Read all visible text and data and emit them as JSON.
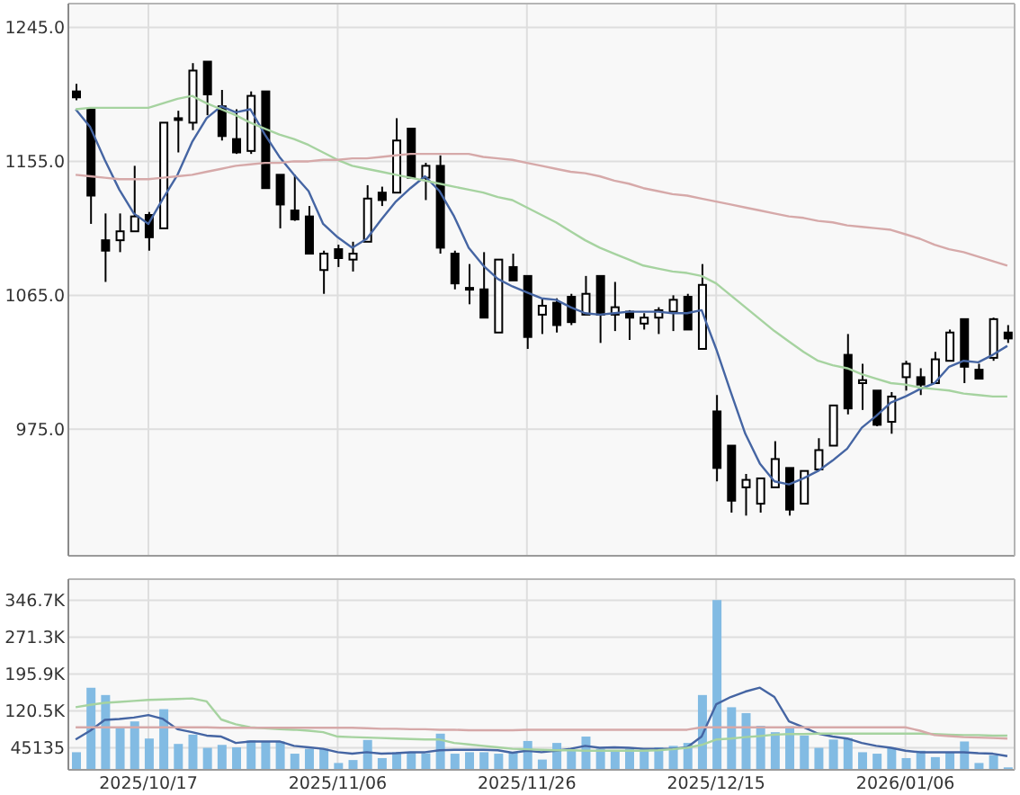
{
  "chart_data": [
    {
      "type": "candlestick",
      "categories": [
        null,
        null,
        null,
        null,
        null,
        "2025/10/17",
        null,
        null,
        null,
        null,
        null,
        null,
        null,
        null,
        null,
        null,
        null,
        null,
        "2025/11/06",
        null,
        null,
        null,
        null,
        null,
        null,
        null,
        null,
        null,
        null,
        null,
        null,
        "2025/11/26",
        null,
        null,
        null,
        null,
        null,
        null,
        null,
        null,
        null,
        null,
        null,
        null,
        "2025/12/15",
        null,
        null,
        null,
        null,
        null,
        null,
        null,
        null,
        null,
        null,
        null,
        null,
        "2026/01/06",
        null,
        null,
        null,
        null,
        null,
        null,
        null
      ],
      "ohlc": [
        [
          1202,
          1207,
          1196,
          1198
        ],
        [
          1190,
          1190,
          1113,
          1132
        ],
        [
          1102,
          1120,
          1074,
          1095
        ],
        [
          1102,
          1120,
          1094,
          1108
        ],
        [
          1108,
          1152,
          1108,
          1118
        ],
        [
          1119,
          1121,
          1095,
          1104
        ],
        [
          1110,
          1181,
          1110,
          1181
        ],
        [
          1184,
          1189,
          1161,
          1183
        ],
        [
          1181,
          1221,
          1176,
          1216
        ],
        [
          1222,
          1222,
          1186,
          1200
        ],
        [
          1192,
          1203,
          1169,
          1172
        ],
        [
          1170,
          1190,
          1160,
          1161
        ],
        [
          1162,
          1202,
          1160,
          1199
        ],
        [
          1202,
          1202,
          1137,
          1137
        ],
        [
          1146,
          1146,
          1110,
          1126
        ],
        [
          1122,
          1146,
          1115,
          1116
        ],
        [
          1118,
          1125,
          1093,
          1093
        ],
        [
          1082,
          1095,
          1066,
          1093
        ],
        [
          1096,
          1099,
          1084,
          1090
        ],
        [
          1089,
          1101,
          1081,
          1093
        ],
        [
          1101,
          1139,
          1101,
          1130
        ],
        [
          1134,
          1138,
          1125,
          1129
        ],
        [
          1134,
          1184,
          1134,
          1169
        ],
        [
          1177,
          1177,
          1144,
          1144
        ],
        [
          1144,
          1154,
          1129,
          1152
        ],
        [
          1152,
          1159,
          1093,
          1097
        ],
        [
          1093,
          1095,
          1069,
          1073
        ],
        [
          1070,
          1086,
          1059,
          1069
        ],
        [
          1069,
          1094,
          1050,
          1050
        ],
        [
          1040,
          1089,
          1040,
          1089
        ],
        [
          1084,
          1093,
          1075,
          1075
        ],
        [
          1078,
          1078,
          1029,
          1037
        ],
        [
          1052,
          1063,
          1039,
          1058
        ],
        [
          1060,
          1063,
          1040,
          1045
        ],
        [
          1064,
          1066,
          1045,
          1047
        ],
        [
          1052,
          1078,
          1052,
          1066
        ],
        [
          1078,
          1078,
          1033,
          1052
        ],
        [
          1052,
          1074,
          1041,
          1057
        ],
        [
          1054,
          1055,
          1035,
          1050
        ],
        [
          1046,
          1053,
          1042,
          1050
        ],
        [
          1050,
          1057,
          1039,
          1055
        ],
        [
          1054,
          1065,
          1041,
          1062
        ],
        [
          1064,
          1066,
          1042,
          1042
        ],
        [
          1029,
          1086,
          1029,
          1072
        ],
        [
          987,
          998,
          940,
          949
        ],
        [
          964,
          964,
          919,
          927
        ],
        [
          936,
          945,
          917,
          941
        ],
        [
          925,
          942,
          919,
          942
        ],
        [
          936,
          967,
          936,
          955
        ],
        [
          949,
          949,
          917,
          921
        ],
        [
          925,
          947,
          925,
          947
        ],
        [
          948,
          969,
          948,
          961
        ],
        [
          964,
          991,
          964,
          991
        ],
        [
          1025,
          1039,
          985,
          989
        ],
        [
          1006,
          1019,
          988,
          1008
        ],
        [
          1001,
          1001,
          977,
          978
        ],
        [
          980,
          1000,
          972,
          997
        ],
        [
          1010,
          1021,
          1001,
          1019
        ],
        [
          1010,
          1016,
          998,
          1005
        ],
        [
          1006,
          1027,
          1006,
          1022
        ],
        [
          1021,
          1042,
          1021,
          1040
        ],
        [
          1049,
          1049,
          1006,
          1017
        ],
        [
          1015,
          1019,
          1009,
          1009
        ],
        [
          1023,
          1050,
          1021,
          1049
        ],
        [
          1040,
          1045,
          1033,
          1036
        ]
      ],
      "series": [
        {
          "type": "line",
          "color": "#4565a3",
          "values": [
            1190,
            1178,
            1156,
            1136,
            1120,
            1113,
            1130,
            1146,
            1168,
            1184,
            1192,
            1188,
            1190,
            1173,
            1158,
            1146,
            1135,
            1113,
            1104,
            1097,
            1103,
            1116,
            1128,
            1137,
            1145,
            1135,
            1118,
            1097,
            1085,
            1076,
            1071,
            1067,
            1063,
            1062,
            1057,
            1053,
            1052,
            1053,
            1054,
            1054,
            1054,
            1053,
            1053,
            1055,
            1029,
            1000,
            972,
            952,
            940,
            938,
            942,
            947,
            954,
            962,
            976,
            984,
            993,
            997,
            1002,
            1006,
            1017,
            1021,
            1020,
            1025,
            1031
          ]
        },
        {
          "type": "line",
          "color": "#a6d3a0",
          "values": [
            1190,
            1191,
            1191,
            1191,
            1191,
            1191,
            1194,
            1197,
            1199,
            1194,
            1190,
            1186,
            1181,
            1177,
            1173,
            1170,
            1166,
            1161,
            1156,
            1152,
            1150,
            1148,
            1146,
            1144,
            1142,
            1140,
            1138,
            1136,
            1134,
            1131,
            1129,
            1124,
            1119,
            1114,
            1108,
            1102,
            1097,
            1093,
            1089,
            1085,
            1083,
            1081,
            1080,
            1078,
            1073,
            1065,
            1057,
            1049,
            1041,
            1034,
            1027,
            1021,
            1018,
            1016,
            1012,
            1009,
            1006,
            1005,
            1003,
            1002,
            1001,
            999,
            998,
            997,
            997
          ]
        },
        {
          "type": "line",
          "color": "#d6a9a9",
          "values": [
            1146,
            1145,
            1144,
            1143,
            1143,
            1143,
            1144,
            1145,
            1146,
            1148,
            1150,
            1152,
            1153,
            1154,
            1154,
            1155,
            1155,
            1156,
            1156,
            1157,
            1157,
            1158,
            1159,
            1160,
            1160,
            1160,
            1160,
            1160,
            1158,
            1157,
            1156,
            1154,
            1152,
            1150,
            1148,
            1147,
            1145,
            1142,
            1140,
            1137,
            1135,
            1133,
            1132,
            1130,
            1128,
            1126,
            1124,
            1122,
            1120,
            1118,
            1117,
            1115,
            1114,
            1112,
            1111,
            1110,
            1109,
            1106,
            1103,
            1099,
            1096,
            1094,
            1091,
            1088,
            1085
          ]
        }
      ],
      "ylim": [
        890,
        1261
      ],
      "yticks": [
        {
          "value": 975,
          "label": "975.0"
        },
        {
          "value": 1065,
          "label": "1065.0"
        },
        {
          "value": 1155,
          "label": "1155.0"
        },
        {
          "value": 1245,
          "label": "1245.0"
        }
      ],
      "grid": true,
      "tick_labels": "y"
    },
    {
      "type": "bar",
      "categories": [
        null,
        null,
        null,
        null,
        null,
        "2025/10/17",
        null,
        null,
        null,
        null,
        null,
        null,
        null,
        null,
        null,
        null,
        null,
        null,
        "2025/11/06",
        null,
        null,
        null,
        null,
        null,
        null,
        null,
        null,
        null,
        null,
        null,
        null,
        "2025/11/26",
        null,
        null,
        null,
        null,
        null,
        null,
        null,
        null,
        null,
        null,
        null,
        null,
        "2025/12/15",
        null,
        null,
        null,
        null,
        null,
        null,
        null,
        null,
        null,
        null,
        null,
        null,
        "2026/01/06",
        null,
        null,
        null,
        null,
        null,
        null,
        null
      ],
      "series": [
        {
          "type": "bar",
          "color": "#82bbe3",
          "values": [
            36000,
            168000,
            153000,
            87000,
            99000,
            64000,
            124000,
            53000,
            72000,
            45000,
            51000,
            46000,
            60000,
            58000,
            58000,
            33000,
            43000,
            43000,
            14000,
            20000,
            61000,
            24000,
            36000,
            36000,
            34000,
            74000,
            33000,
            36000,
            36000,
            33000,
            36000,
            59000,
            21000,
            55000,
            40000,
            68000,
            43000,
            40000,
            43000,
            43000,
            46000,
            49000,
            55000,
            153000,
            347000,
            128000,
            116000,
            90000,
            77000,
            89000,
            70000,
            45000,
            62000,
            65000,
            36000,
            33000,
            45000,
            24000,
            39000,
            26000,
            36000,
            58000,
            14000,
            30000,
            5000
          ]
        },
        {
          "type": "line",
          "color": "#4565a3",
          "values": [
            62000,
            80000,
            102000,
            104000,
            107000,
            112000,
            104000,
            83000,
            77000,
            70000,
            68000,
            55000,
            58000,
            58000,
            58000,
            49000,
            46000,
            43000,
            36000,
            33000,
            36000,
            33000,
            34000,
            36000,
            36000,
            40000,
            41000,
            41000,
            41000,
            40000,
            35000,
            39000,
            36000,
            39000,
            43000,
            49000,
            45000,
            46000,
            45000,
            43000,
            43000,
            43000,
            46000,
            68000,
            134000,
            149000,
            160000,
            168000,
            149000,
            99000,
            87000,
            74000,
            68000,
            64000,
            55000,
            49000,
            45000,
            39000,
            36000,
            36000,
            36000,
            36000,
            34000,
            33000,
            28000
          ]
        },
        {
          "type": "line",
          "color": "#a6d3a0",
          "values": [
            128000,
            133000,
            137000,
            139000,
            141000,
            143000,
            144000,
            145000,
            146000,
            140000,
            103000,
            93000,
            87000,
            85000,
            83000,
            82000,
            80000,
            77000,
            68000,
            67000,
            66000,
            65000,
            64000,
            63000,
            62000,
            62000,
            55000,
            52000,
            49000,
            46000,
            43000,
            42000,
            41000,
            40000,
            40000,
            39000,
            39000,
            39000,
            39000,
            39000,
            40000,
            42000,
            45000,
            51000,
            62000,
            64000,
            67000,
            69000,
            72000,
            73000,
            73000,
            74000,
            74000,
            74000,
            74000,
            74000,
            74000,
            74000,
            74000,
            73000,
            72000,
            71000,
            71000,
            70000,
            70000
          ]
        },
        {
          "type": "line",
          "color": "#d6a9a9",
          "values": [
            87000,
            87000,
            87000,
            87000,
            87000,
            87000,
            87000,
            87000,
            87000,
            87000,
            86000,
            86000,
            86000,
            86000,
            86000,
            86000,
            86000,
            86000,
            86000,
            86000,
            85000,
            84000,
            84000,
            83000,
            83000,
            82000,
            82000,
            81000,
            81000,
            81000,
            81000,
            82000,
            82000,
            82000,
            82000,
            82000,
            82000,
            82000,
            82000,
            82000,
            82000,
            82000,
            82000,
            87000,
            87000,
            87000,
            87000,
            87000,
            87000,
            87000,
            87000,
            87000,
            87000,
            87000,
            87000,
            87000,
            87000,
            87000,
            80000,
            71000,
            69000,
            67000,
            66000,
            65000,
            64000
          ]
        }
      ],
      "ylim": [
        0,
        390000
      ],
      "yticks": [
        45135,
        {
          "value": 120500,
          "label": "120.5K"
        },
        {
          "value": 195900,
          "label": "195.9K"
        },
        {
          "value": 271300,
          "label": "271.3K"
        },
        {
          "value": 346700,
          "label": "346.7K"
        }
      ],
      "grid": true
    }
  ]
}
